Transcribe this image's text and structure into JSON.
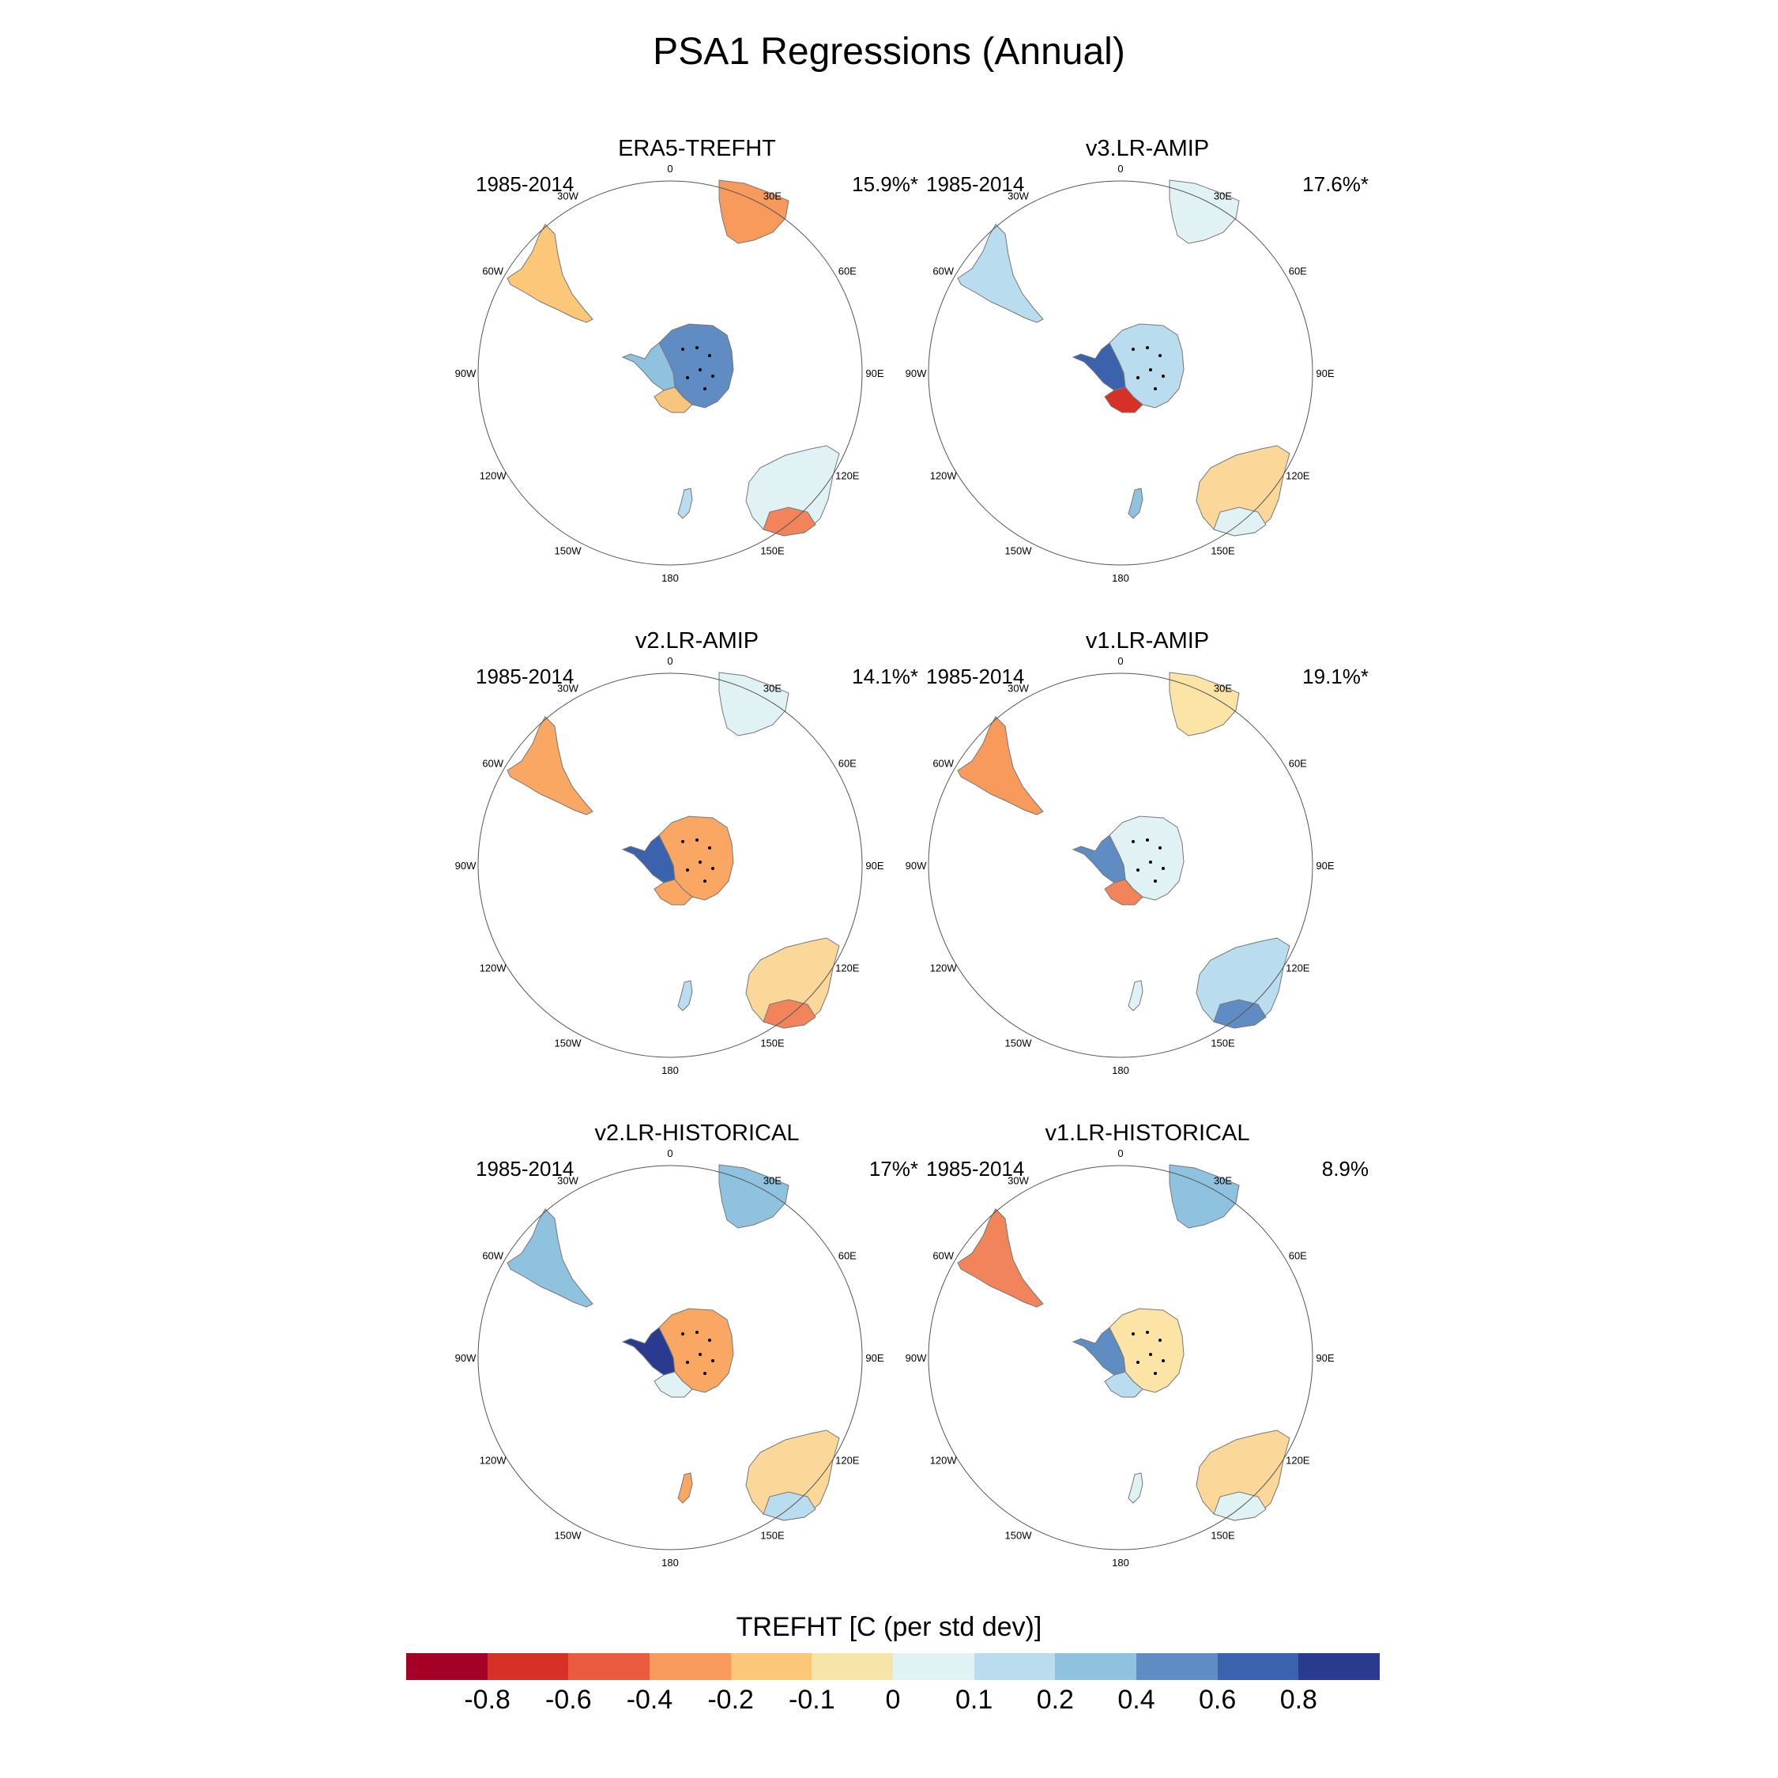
{
  "title": "PSA1 Regressions (Annual)",
  "longitude_labels": [
    "0",
    "30E",
    "60E",
    "90E",
    "120E",
    "150E",
    "180",
    "150W",
    "120W",
    "90W",
    "60W",
    "30W"
  ],
  "panels": [
    {
      "name": "ERA5-TREFHT",
      "period": "1985-2014",
      "percent": "15.9%*",
      "colors": {
        "ant_main": "#5f8dc3",
        "ant_pen": "#8fc2de",
        "ant_tip": "#f7c57e",
        "sam": "#fcc779",
        "aus": "#e0f2f3",
        "aus_se": "#f1845a",
        "africa": "#f99a5d",
        "nz": "#b9dcee"
      }
    },
    {
      "name": "v3.LR-AMIP",
      "period": "1985-2014",
      "percent": "17.6%*",
      "colors": {
        "ant_main": "#b9dcee",
        "ant_pen": "#3b62ad",
        "ant_tip": "#d73027",
        "sam": "#b9dcee",
        "aus": "#fbd79a",
        "aus_se": "#e0f2f3",
        "africa": "#e0f2f3",
        "nz": "#8fc2de"
      }
    },
    {
      "name": "v2.LR-AMIP",
      "period": "1985-2014",
      "percent": "14.1%*",
      "colors": {
        "ant_main": "#f9a763",
        "ant_pen": "#3b62ad",
        "ant_tip": "#f9a763",
        "sam": "#f9a763",
        "aus": "#fbd79a",
        "aus_se": "#f1845a",
        "africa": "#e0f2f3",
        "nz": "#b9dcee"
      }
    },
    {
      "name": "v1.LR-AMIP",
      "period": "1985-2014",
      "percent": "19.1%*",
      "colors": {
        "ant_main": "#e0f2f3",
        "ant_pen": "#5f8dc3",
        "ant_tip": "#f1845a",
        "sam": "#f99a5d",
        "aus": "#b9dcee",
        "aus_se": "#5f8dc3",
        "africa": "#fbe4a6",
        "nz": "#e0f2f3"
      }
    },
    {
      "name": "v2.LR-HISTORICAL",
      "period": "1985-2014",
      "percent": "17%*",
      "colors": {
        "ant_main": "#f9a763",
        "ant_pen": "#2a3b8f",
        "ant_tip": "#e0f2f3",
        "sam": "#8fc2de",
        "aus": "#fbd79a",
        "aus_se": "#b9dcee",
        "africa": "#8fc2de",
        "nz": "#f9a763"
      }
    },
    {
      "name": "v1.LR-HISTORICAL",
      "period": "1985-2014",
      "percent": "8.9%",
      "colors": {
        "ant_main": "#fbe4a6",
        "ant_pen": "#5f8dc3",
        "ant_tip": "#b9dcee",
        "sam": "#f1845a",
        "aus": "#fbd79a",
        "aus_se": "#e0f2f3",
        "africa": "#8fc2de",
        "nz": "#e0f2f3"
      }
    }
  ],
  "colorbar": {
    "title": "TREFHT [C (per std dev)]",
    "colors": [
      "#a50026",
      "#d73027",
      "#ea5a3c",
      "#f99a5d",
      "#fcc779",
      "#f7e4a8",
      "#e0f2f3",
      "#b9dcee",
      "#8fc2de",
      "#5f8dc3",
      "#3b62ad",
      "#2a3b8f"
    ],
    "tick_labels": [
      "-0.8",
      "-0.6",
      "-0.4",
      "-0.2",
      "-0.1",
      "0",
      "0.1",
      "0.2",
      "0.4",
      "0.6",
      "0.8"
    ]
  }
}
